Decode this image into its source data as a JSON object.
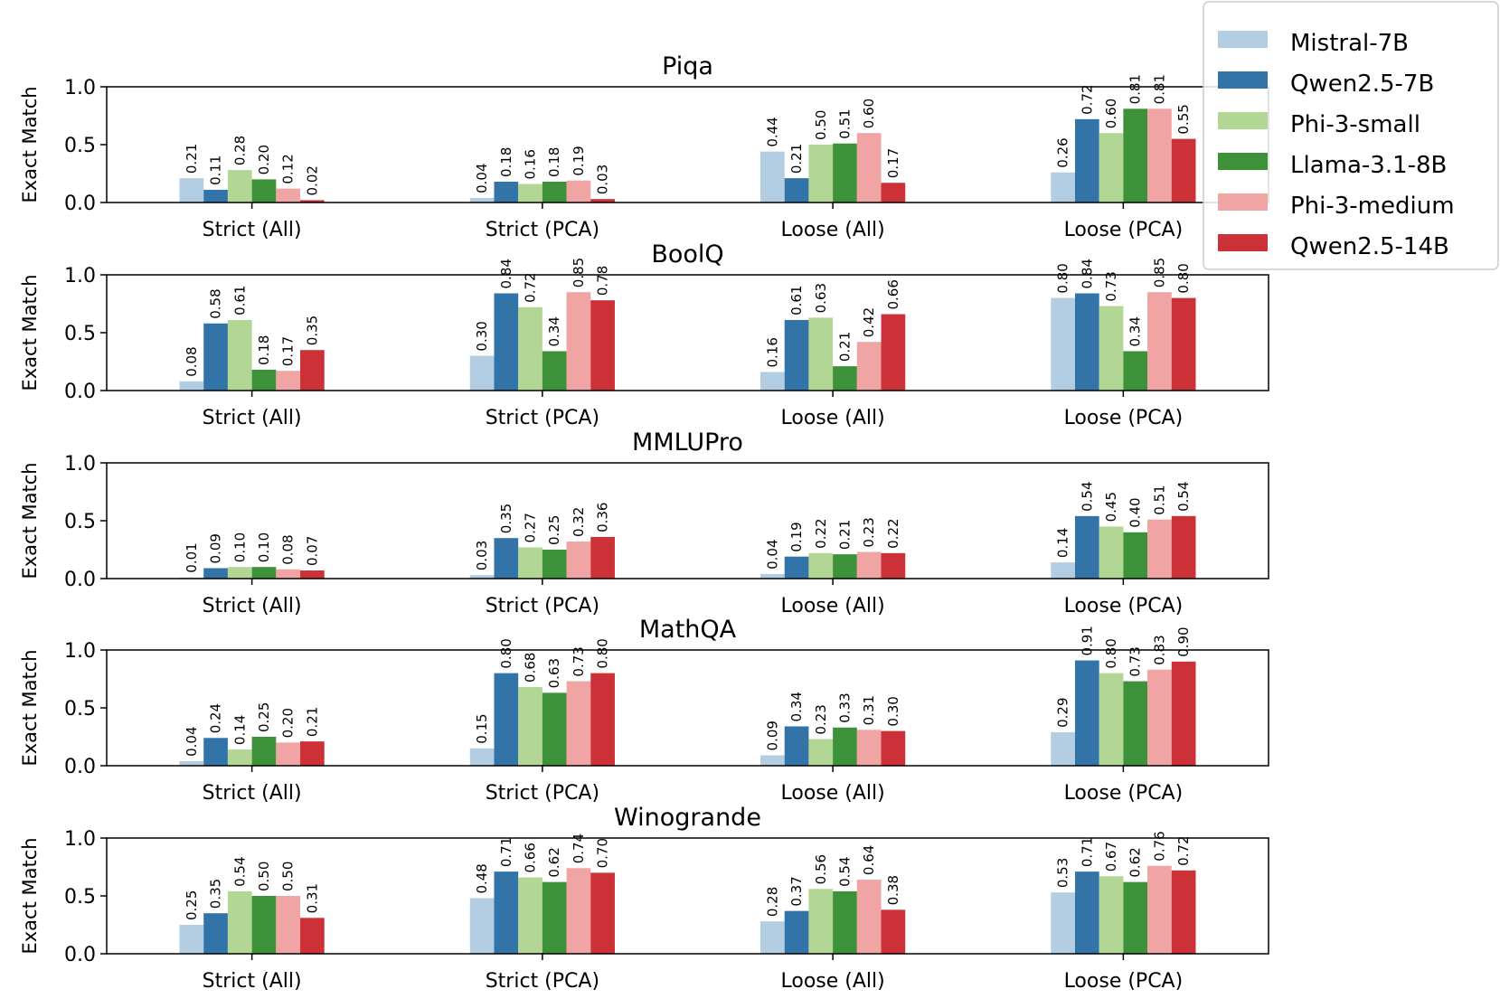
{
  "chart_data": {
    "type": "bar",
    "ylabel": "Exact Match",
    "ylim": [
      0,
      1.0
    ],
    "yticks": [
      "0.0",
      "0.5",
      "1.0"
    ],
    "categories": [
      "Strict (All)",
      "Strict (PCA)",
      "Loose (All)",
      "Loose (PCA)"
    ],
    "series_colors": {
      "Mistral-7B": "#b3cde3",
      "Qwen2.5-7B": "#3274a8",
      "Phi-3-small": "#b2d694",
      "Llama-3.1-8B": "#3d9139",
      "Phi-3-medium": "#f0a4a4",
      "Qwen2.5-14B": "#cc3137"
    },
    "legend": {
      "position": "top-right",
      "entries": [
        "Mistral-7B",
        "Qwen2.5-7B",
        "Phi-3-small",
        "Llama-3.1-8B",
        "Phi-3-medium",
        "Qwen2.5-14B"
      ]
    },
    "panels": [
      {
        "title": "Piqa",
        "series": [
          {
            "name": "Mistral-7B",
            "values": [
              0.21,
              0.04,
              0.44,
              0.26
            ]
          },
          {
            "name": "Qwen2.5-7B",
            "values": [
              0.11,
              0.18,
              0.21,
              0.72
            ]
          },
          {
            "name": "Phi-3-small",
            "values": [
              0.28,
              0.16,
              0.5,
              0.6
            ]
          },
          {
            "name": "Llama-3.1-8B",
            "values": [
              0.2,
              0.18,
              0.51,
              0.81
            ]
          },
          {
            "name": "Phi-3-medium",
            "values": [
              0.12,
              0.19,
              0.6,
              0.81
            ]
          },
          {
            "name": "Qwen2.5-14B",
            "values": [
              0.02,
              0.03,
              0.17,
              0.55
            ]
          }
        ]
      },
      {
        "title": "BoolQ",
        "series": [
          {
            "name": "Mistral-7B",
            "values": [
              0.08,
              0.3,
              0.16,
              0.8
            ]
          },
          {
            "name": "Qwen2.5-7B",
            "values": [
              0.58,
              0.84,
              0.61,
              0.84
            ]
          },
          {
            "name": "Phi-3-small",
            "values": [
              0.61,
              0.72,
              0.63,
              0.73
            ]
          },
          {
            "name": "Llama-3.1-8B",
            "values": [
              0.18,
              0.34,
              0.21,
              0.34
            ]
          },
          {
            "name": "Phi-3-medium",
            "values": [
              0.17,
              0.85,
              0.42,
              0.85
            ]
          },
          {
            "name": "Qwen2.5-14B",
            "values": [
              0.35,
              0.78,
              0.66,
              0.8
            ]
          }
        ]
      },
      {
        "title": "MMLUPro",
        "series": [
          {
            "name": "Mistral-7B",
            "values": [
              0.01,
              0.03,
              0.04,
              0.14
            ]
          },
          {
            "name": "Qwen2.5-7B",
            "values": [
              0.09,
              0.35,
              0.19,
              0.54
            ]
          },
          {
            "name": "Phi-3-small",
            "values": [
              0.1,
              0.27,
              0.22,
              0.45
            ]
          },
          {
            "name": "Llama-3.1-8B",
            "values": [
              0.1,
              0.25,
              0.21,
              0.4
            ]
          },
          {
            "name": "Phi-3-medium",
            "values": [
              0.08,
              0.32,
              0.23,
              0.51
            ]
          },
          {
            "name": "Qwen2.5-14B",
            "values": [
              0.07,
              0.36,
              0.22,
              0.54
            ]
          }
        ]
      },
      {
        "title": "MathQA",
        "series": [
          {
            "name": "Mistral-7B",
            "values": [
              0.04,
              0.15,
              0.09,
              0.29
            ]
          },
          {
            "name": "Qwen2.5-7B",
            "values": [
              0.24,
              0.8,
              0.34,
              0.91
            ]
          },
          {
            "name": "Phi-3-small",
            "values": [
              0.14,
              0.68,
              0.23,
              0.8
            ]
          },
          {
            "name": "Llama-3.1-8B",
            "values": [
              0.25,
              0.63,
              0.33,
              0.73
            ]
          },
          {
            "name": "Phi-3-medium",
            "values": [
              0.2,
              0.73,
              0.31,
              0.83
            ]
          },
          {
            "name": "Qwen2.5-14B",
            "values": [
              0.21,
              0.8,
              0.3,
              0.9
            ]
          }
        ]
      },
      {
        "title": "Winogrande",
        "series": [
          {
            "name": "Mistral-7B",
            "values": [
              0.25,
              0.48,
              0.28,
              0.53
            ]
          },
          {
            "name": "Qwen2.5-7B",
            "values": [
              0.35,
              0.71,
              0.37,
              0.71
            ]
          },
          {
            "name": "Phi-3-small",
            "values": [
              0.54,
              0.66,
              0.56,
              0.67
            ]
          },
          {
            "name": "Llama-3.1-8B",
            "values": [
              0.5,
              0.62,
              0.54,
              0.62
            ]
          },
          {
            "name": "Phi-3-medium",
            "values": [
              0.5,
              0.74,
              0.64,
              0.76
            ]
          },
          {
            "name": "Qwen2.5-14B",
            "values": [
              0.31,
              0.7,
              0.38,
              0.72
            ]
          }
        ]
      }
    ]
  }
}
